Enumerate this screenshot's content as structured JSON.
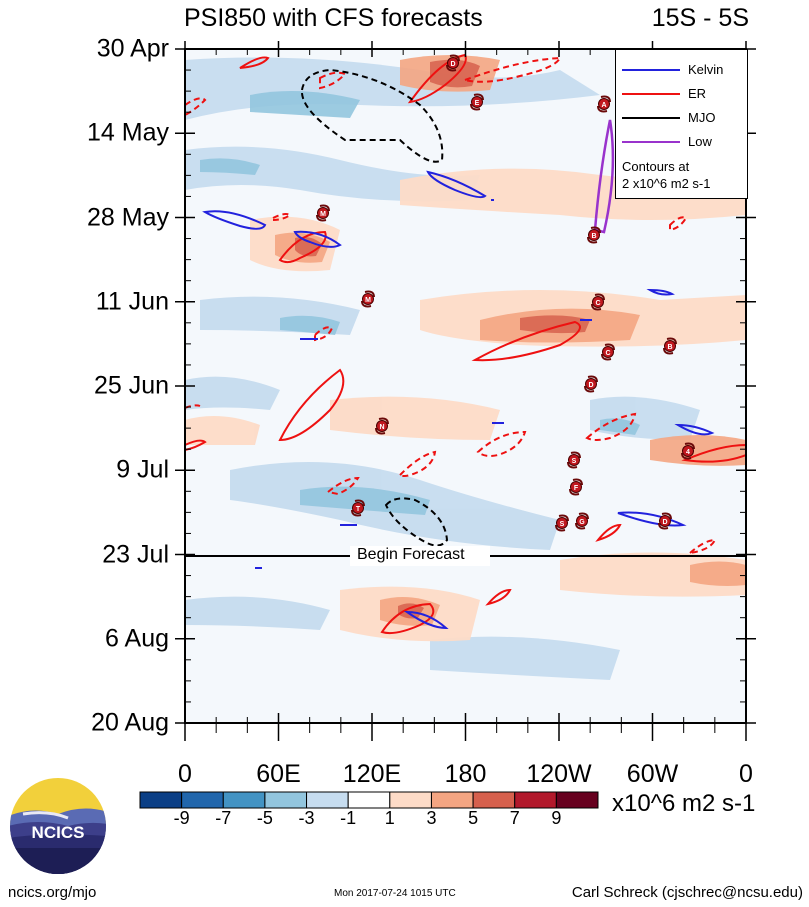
{
  "chart_data": {
    "type": "heatmap",
    "title": "PSI850 with CFS forecasts",
    "lat_band": "15S - 5S",
    "y_axis": {
      "labels": [
        "30 Apr",
        "14 May",
        "28 May",
        "11 Jun",
        "25 Jun",
        "9 Jul",
        "23 Jul",
        "6 Aug",
        "20 Aug"
      ],
      "range": [
        "30 Apr",
        "20 Aug"
      ],
      "direction": "time increases downward"
    },
    "x_axis": {
      "labels": [
        "0",
        "60E",
        "120E",
        "180",
        "120W",
        "60W",
        "0"
      ],
      "range_deg_lon": [
        0,
        360
      ]
    },
    "forecast_start": "23 Jul",
    "forecast_label": "Begin Forecast",
    "legend": {
      "entries": [
        {
          "name": "Kelvin",
          "color": "#2222dd"
        },
        {
          "name": "ER",
          "color": "#ee1111"
        },
        {
          "name": "MJO",
          "color": "#000000"
        },
        {
          "name": "Low",
          "color": "#9933cc"
        }
      ],
      "note_line1": "Contours at",
      "note_line2": "2 x10^6 m2 s-1",
      "placement": "top-right"
    },
    "colorbar": {
      "labels": [
        "-9",
        "-7",
        "-5",
        "-3",
        "-1",
        "1",
        "3",
        "5",
        "7",
        "9"
      ],
      "colors": [
        "#0b3f86",
        "#2166ac",
        "#4393c3",
        "#92c5de",
        "#c6dcef",
        "#ffffff",
        "#fddbc7",
        "#f4a582",
        "#d6604d",
        "#b2182b",
        "#67001f"
      ],
      "units": "x10^6 m2 s-1"
    },
    "storm_markers": [
      "D",
      "E",
      "A",
      "M",
      "B",
      "M",
      "C",
      "C",
      "B",
      "D",
      "N",
      "S",
      "F",
      "4",
      "T",
      "S",
      "G",
      "D"
    ]
  },
  "footer": {
    "logo_text": "NCICS",
    "left": "ncics.org/mjo",
    "center": "Mon 2017-07-24 1015 UTC",
    "right": "Carl Schreck (cjschrec@ncsu.edu)"
  }
}
